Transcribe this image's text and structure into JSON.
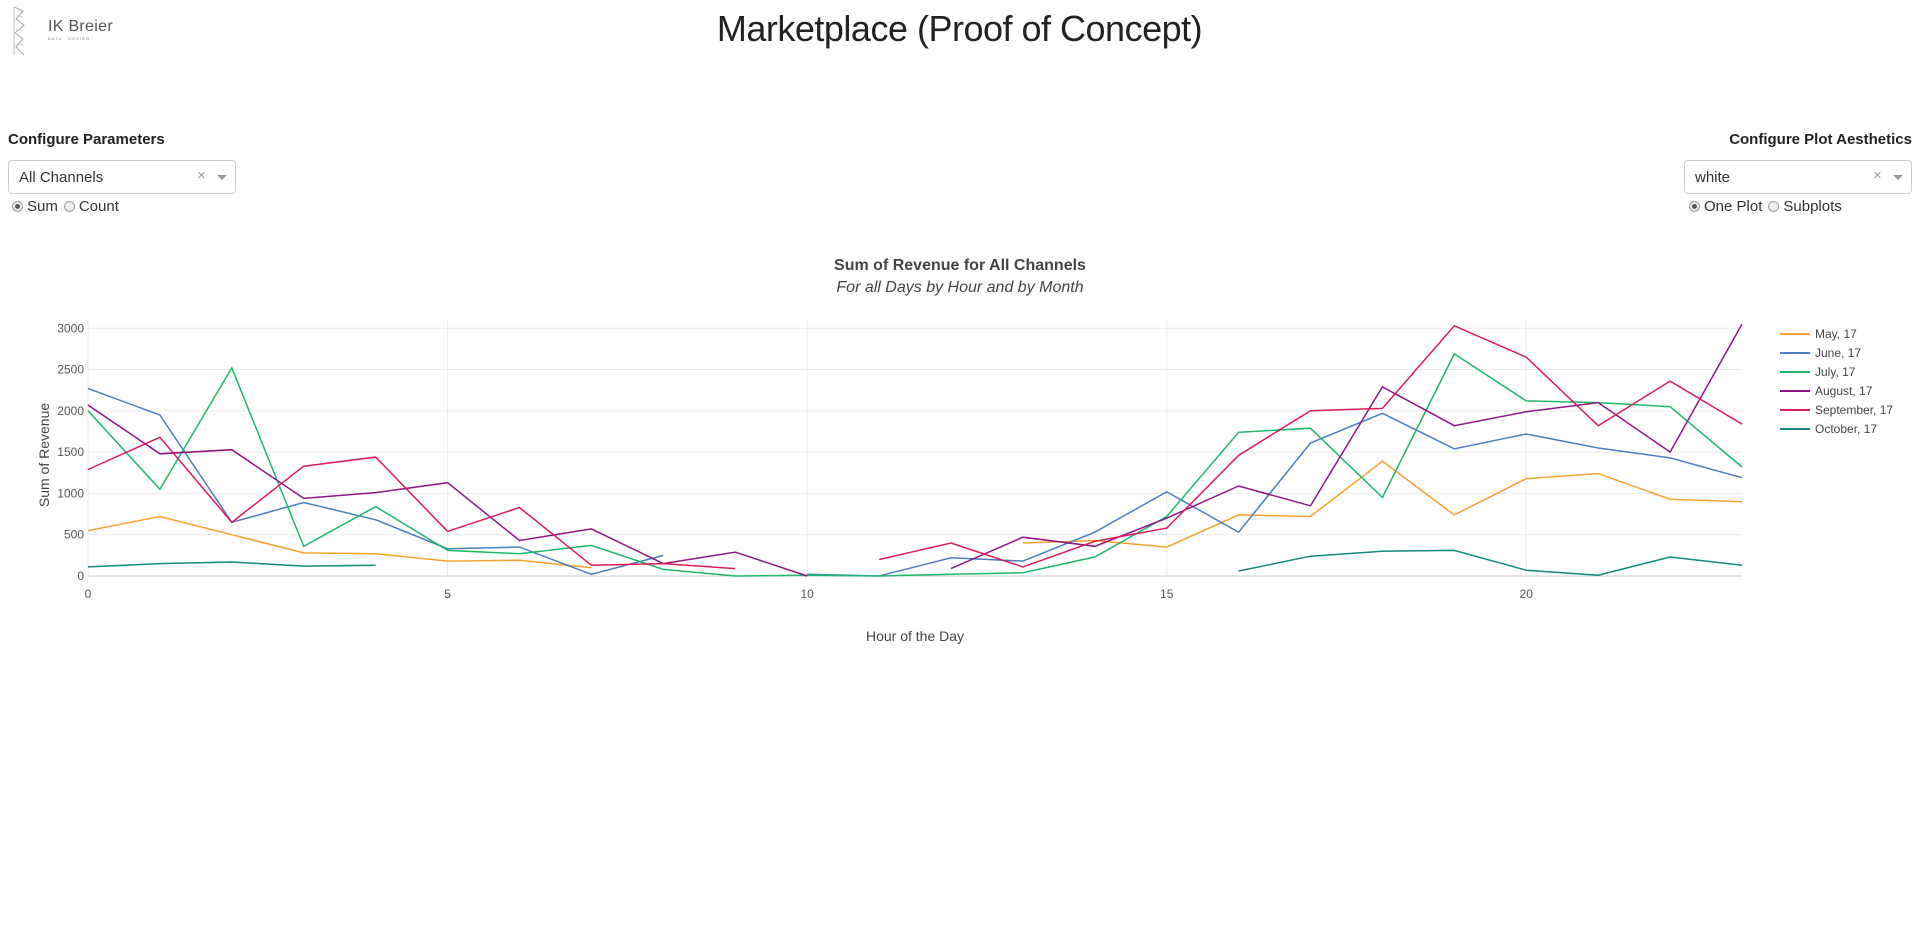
{
  "header": {
    "logo_text": "IK Breier",
    "logo_subtext": "DATA · DESIGN",
    "title": "Marketplace (Proof of Concept)"
  },
  "params": {
    "title": "Configure Parameters",
    "channel_value": "All Channels",
    "clear_glyph": "×",
    "options": [
      {
        "label": "Sum",
        "checked": true
      },
      {
        "label": "Count",
        "checked": false
      }
    ]
  },
  "aesthetics": {
    "title": "Configure Plot Aesthetics",
    "theme_value": "white",
    "clear_glyph": "×",
    "options": [
      {
        "label": "One Plot",
        "checked": true
      },
      {
        "label": "Subplots",
        "checked": false
      }
    ]
  },
  "chart_data": {
    "type": "line",
    "title": "Sum of Revenue for All Channels",
    "subtitle": "For all Days by Hour and  by Month",
    "xlabel": "Hour of the Day",
    "ylabel": "Sum of Revenue",
    "xlim": [
      0,
      23
    ],
    "ylim": [
      0,
      3100
    ],
    "xticks": [
      0,
      5,
      10,
      15,
      20
    ],
    "yticks": [
      0,
      500,
      1000,
      1500,
      2000,
      2500,
      3000
    ],
    "grid": true,
    "legend_position": "right",
    "series": [
      {
        "name": "May, 17",
        "color": "#f7a22b",
        "points": [
          [
            0,
            550
          ],
          [
            1,
            720
          ],
          [
            2,
            500
          ],
          [
            3,
            280
          ],
          [
            4,
            270
          ],
          [
            5,
            180
          ],
          [
            6,
            190
          ],
          [
            7,
            100
          ],
          [
            8,
            null
          ],
          [
            9,
            null
          ],
          [
            10,
            null
          ],
          [
            11,
            null
          ],
          [
            12,
            null
          ],
          [
            13,
            400
          ],
          [
            14,
            430
          ],
          [
            15,
            350
          ],
          [
            16,
            740
          ],
          [
            17,
            720
          ],
          [
            18,
            1390
          ],
          [
            19,
            740
          ],
          [
            20,
            1180
          ],
          [
            21,
            1240
          ],
          [
            22,
            930
          ],
          [
            23,
            900
          ]
        ]
      },
      {
        "name": "June, 17",
        "color": "#4a7fc1",
        "points": [
          [
            0,
            2270
          ],
          [
            1,
            1950
          ],
          [
            2,
            650
          ],
          [
            3,
            890
          ],
          [
            4,
            680
          ],
          [
            5,
            330
          ],
          [
            6,
            350
          ],
          [
            7,
            20
          ],
          [
            8,
            250
          ],
          [
            9,
            null
          ],
          [
            10,
            20
          ],
          [
            11,
            0
          ],
          [
            12,
            220
          ],
          [
            13,
            180
          ],
          [
            14,
            530
          ],
          [
            15,
            1020
          ],
          [
            16,
            530
          ],
          [
            17,
            1610
          ],
          [
            18,
            1970
          ],
          [
            19,
            1540
          ],
          [
            20,
            1720
          ],
          [
            21,
            1550
          ],
          [
            22,
            1430
          ],
          [
            23,
            1190
          ]
        ]
      },
      {
        "name": "July, 17",
        "color": "#1db86b",
        "points": [
          [
            0,
            2000
          ],
          [
            1,
            1050
          ],
          [
            2,
            2520
          ],
          [
            3,
            360
          ],
          [
            4,
            840
          ],
          [
            5,
            310
          ],
          [
            6,
            270
          ],
          [
            7,
            370
          ],
          [
            8,
            80
          ],
          [
            9,
            0
          ],
          [
            10,
            10
          ],
          [
            11,
            0
          ],
          [
            12,
            20
          ],
          [
            13,
            40
          ],
          [
            14,
            230
          ],
          [
            15,
            720
          ],
          [
            16,
            1740
          ],
          [
            17,
            1790
          ],
          [
            18,
            950
          ],
          [
            19,
            2690
          ],
          [
            20,
            2120
          ],
          [
            21,
            2100
          ],
          [
            22,
            2050
          ],
          [
            23,
            1320
          ]
        ]
      },
      {
        "name": "August, 17",
        "color": "#8e1585",
        "points": [
          [
            0,
            2070
          ],
          [
            1,
            1480
          ],
          [
            2,
            1530
          ],
          [
            3,
            940
          ],
          [
            4,
            1010
          ],
          [
            5,
            1130
          ],
          [
            6,
            430
          ],
          [
            7,
            570
          ],
          [
            8,
            150
          ],
          [
            9,
            290
          ],
          [
            10,
            0
          ],
          [
            11,
            null
          ],
          [
            12,
            90
          ],
          [
            13,
            470
          ],
          [
            14,
            360
          ],
          [
            15,
            700
          ],
          [
            16,
            1090
          ],
          [
            17,
            850
          ],
          [
            18,
            2290
          ],
          [
            19,
            1820
          ],
          [
            20,
            1990
          ],
          [
            21,
            2100
          ],
          [
            22,
            1500
          ],
          [
            23,
            3050
          ]
        ]
      },
      {
        "name": "September, 17",
        "color": "#dd1a5a",
        "points": [
          [
            0,
            1290
          ],
          [
            1,
            1680
          ],
          [
            2,
            650
          ],
          [
            3,
            1330
          ],
          [
            4,
            1440
          ],
          [
            5,
            540
          ],
          [
            6,
            830
          ],
          [
            7,
            130
          ],
          [
            8,
            150
          ],
          [
            9,
            90
          ],
          [
            10,
            null
          ],
          [
            11,
            200
          ],
          [
            12,
            400
          ],
          [
            13,
            110
          ],
          [
            14,
            420
          ],
          [
            15,
            580
          ],
          [
            16,
            1460
          ],
          [
            17,
            2000
          ],
          [
            18,
            2030
          ],
          [
            19,
            3030
          ],
          [
            20,
            2650
          ],
          [
            21,
            1820
          ],
          [
            22,
            2360
          ],
          [
            23,
            1840
          ]
        ]
      },
      {
        "name": "October, 17",
        "color": "#138a7a",
        "points": [
          [
            0,
            110
          ],
          [
            1,
            150
          ],
          [
            2,
            170
          ],
          [
            3,
            120
          ],
          [
            4,
            130
          ],
          [
            5,
            null
          ],
          [
            6,
            null
          ],
          [
            7,
            null
          ],
          [
            8,
            null
          ],
          [
            9,
            null
          ],
          [
            10,
            null
          ],
          [
            11,
            null
          ],
          [
            12,
            null
          ],
          [
            13,
            null
          ],
          [
            14,
            null
          ],
          [
            15,
            null
          ],
          [
            16,
            60
          ],
          [
            17,
            240
          ],
          [
            18,
            300
          ],
          [
            19,
            310
          ],
          [
            20,
            70
          ],
          [
            21,
            10
          ],
          [
            22,
            230
          ],
          [
            23,
            130
          ]
        ]
      }
    ]
  }
}
